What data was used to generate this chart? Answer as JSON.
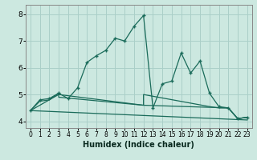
{
  "xlabel": "Humidex (Indice chaleur)",
  "xlim": [
    -0.5,
    23.5
  ],
  "ylim": [
    3.75,
    8.35
  ],
  "yticks": [
    4,
    5,
    6,
    7,
    8
  ],
  "xticks": [
    0,
    1,
    2,
    3,
    4,
    5,
    6,
    7,
    8,
    9,
    10,
    11,
    12,
    13,
    14,
    15,
    16,
    17,
    18,
    19,
    20,
    21,
    22,
    23
  ],
  "bg_color": "#cce8e0",
  "grid_color": "#aacfc8",
  "line_color": "#1a6b5a",
  "curves": [
    {
      "x": [
        0,
        1,
        2,
        3,
        4,
        5,
        6,
        7,
        8,
        9,
        10,
        11,
        12,
        13,
        14,
        15,
        16,
        17,
        18,
        19,
        20,
        21,
        22,
        23
      ],
      "y": [
        4.4,
        4.8,
        4.85,
        5.05,
        4.85,
        5.25,
        6.2,
        6.45,
        6.65,
        7.1,
        7.0,
        7.55,
        7.95,
        4.5,
        5.4,
        5.5,
        6.55,
        5.8,
        6.25,
        5.05,
        4.55,
        4.5,
        4.1,
        4.15
      ],
      "has_markers": true
    },
    {
      "x": [
        0,
        1,
        2,
        3,
        3,
        12,
        12,
        19,
        20,
        21,
        22,
        23
      ],
      "y": [
        4.4,
        4.75,
        4.8,
        5.05,
        4.9,
        4.6,
        5.0,
        4.55,
        4.5,
        4.5,
        4.1,
        4.15
      ],
      "has_markers": false
    },
    {
      "x": [
        0,
        3,
        12,
        21,
        22,
        23
      ],
      "y": [
        4.4,
        5.0,
        4.6,
        4.5,
        4.1,
        4.15
      ],
      "has_markers": false
    },
    {
      "x": [
        0,
        23
      ],
      "y": [
        4.4,
        4.05
      ],
      "has_markers": false
    }
  ]
}
